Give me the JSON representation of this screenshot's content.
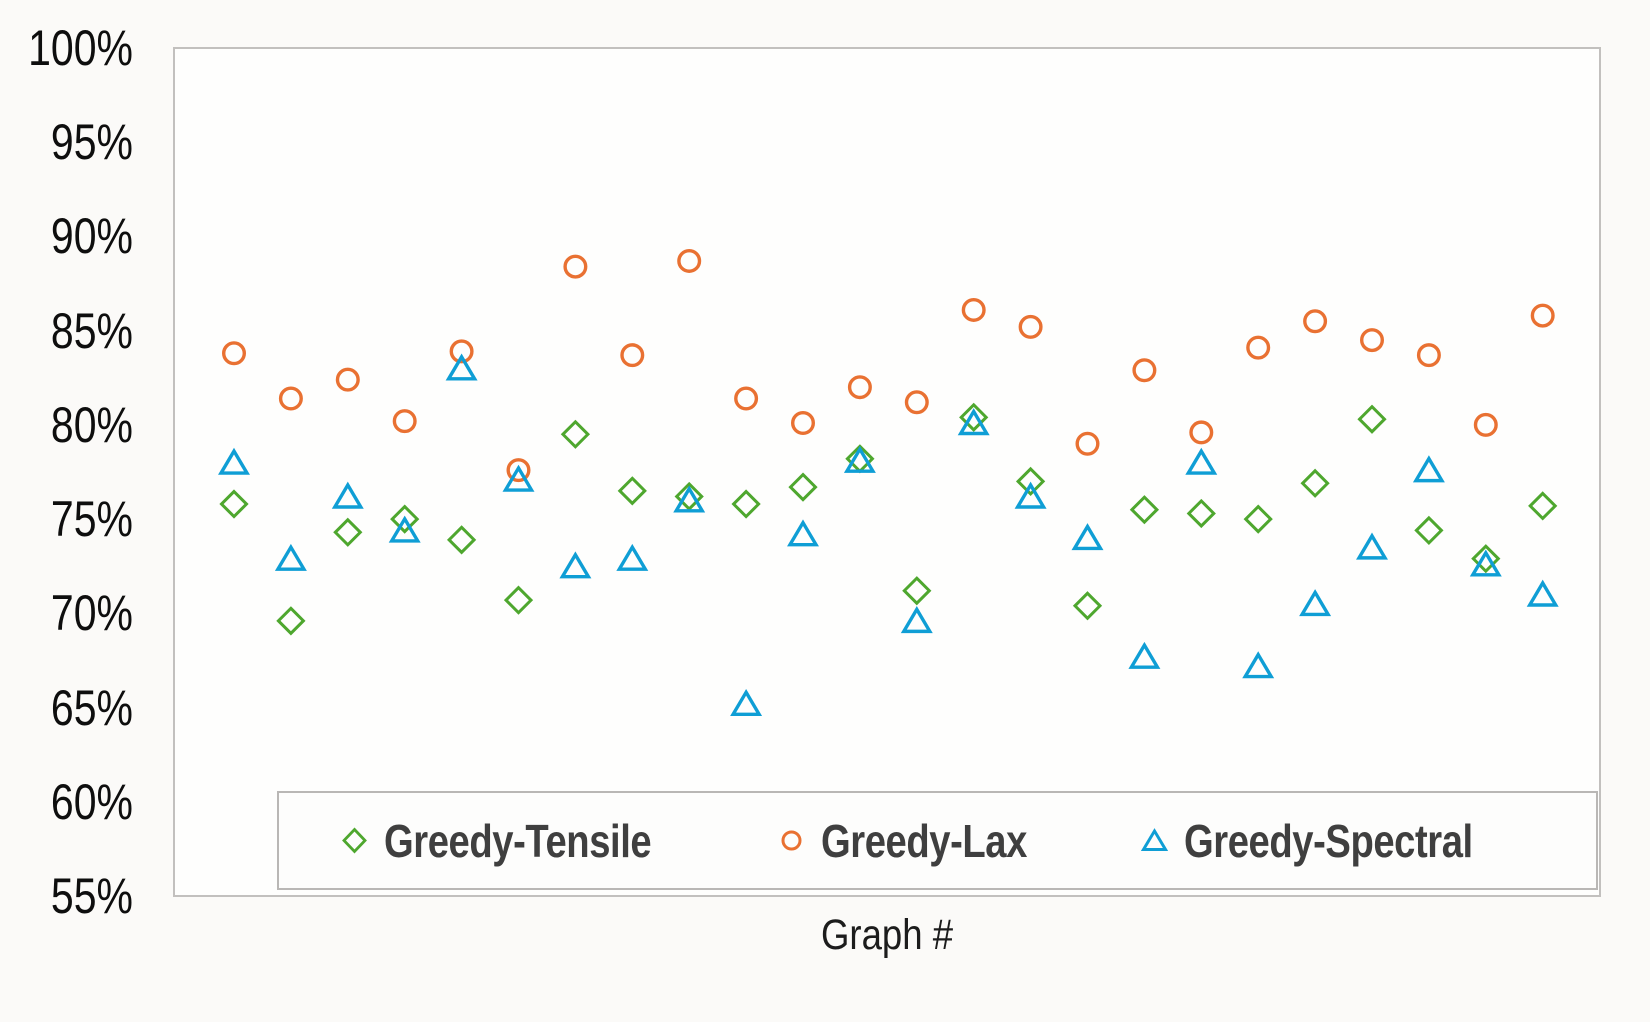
{
  "chart_data": {
    "type": "scatter",
    "title": "",
    "xlabel": "Graph #",
    "ylabel": "",
    "x": [
      1,
      2,
      3,
      4,
      5,
      6,
      7,
      8,
      9,
      10,
      11,
      12,
      13,
      14,
      15,
      16,
      17,
      18,
      19,
      20,
      21,
      22,
      23,
      24
    ],
    "ylim": [
      55,
      100
    ],
    "ytick_values": [
      100,
      95,
      90,
      85,
      80,
      75,
      70,
      65,
      60,
      55
    ],
    "ytick_suffix": "%",
    "grid": false,
    "legend_position": "bottom-inside",
    "series": [
      {
        "name": "Greedy-Tensile",
        "marker": "diamond",
        "color": "#4EA72E",
        "values": [
          75.8,
          69.6,
          74.3,
          75.0,
          73.9,
          70.7,
          79.5,
          76.5,
          76.2,
          75.8,
          76.7,
          78.2,
          71.2,
          80.4,
          77.0,
          70.4,
          75.5,
          75.3,
          75.0,
          76.9,
          80.3,
          74.4,
          72.9,
          75.7
        ]
      },
      {
        "name": "Greedy-Lax",
        "marker": "circle",
        "color": "#E97132",
        "values": [
          83.8,
          81.4,
          82.4,
          80.2,
          83.9,
          77.6,
          88.4,
          83.7,
          88.7,
          81.4,
          80.1,
          82.0,
          81.2,
          86.1,
          85.2,
          79.0,
          82.9,
          79.6,
          84.1,
          85.5,
          84.5,
          83.7,
          80.0,
          85.8
        ]
      },
      {
        "name": "Greedy-Spectral",
        "marker": "triangle",
        "color": "#0F9ED5",
        "values": [
          78.0,
          72.9,
          76.2,
          74.4,
          83.0,
          77.1,
          72.5,
          72.9,
          76.0,
          65.2,
          74.2,
          78.1,
          69.6,
          80.1,
          76.2,
          74.0,
          67.7,
          78.0,
          67.2,
          70.5,
          73.5,
          77.6,
          72.6,
          71.0
        ]
      }
    ],
    "style": {
      "plot_fill": "#fefefd",
      "plot_border": "#c2c0be",
      "legend_text_color": "#3f3f3f",
      "tick_text_color": "#0e0e0e"
    }
  }
}
